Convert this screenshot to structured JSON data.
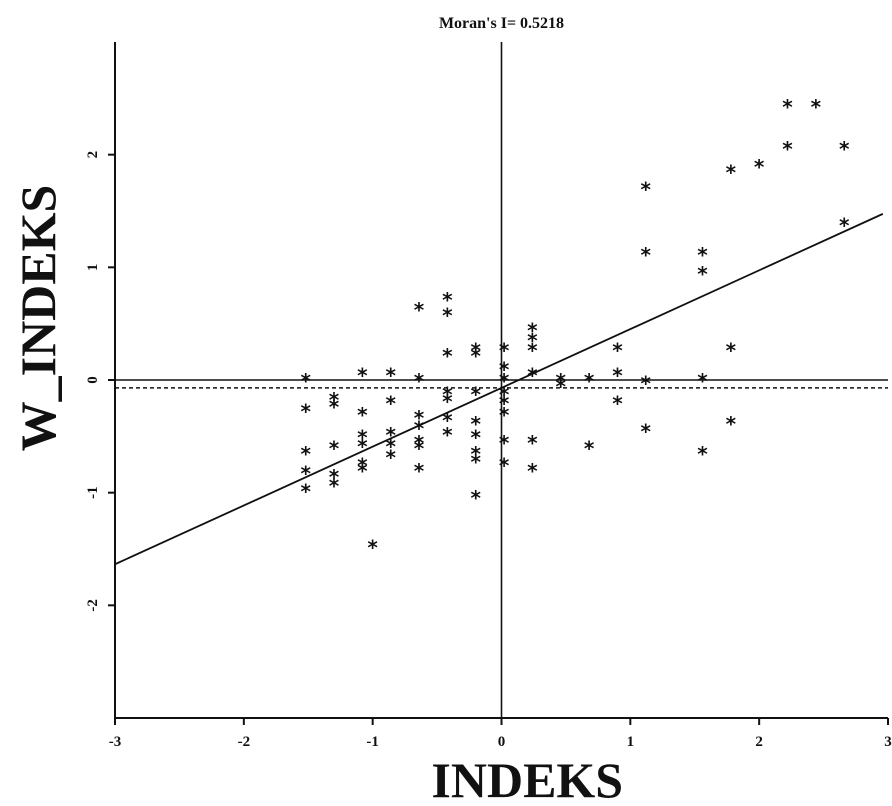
{
  "chart_data": {
    "type": "scatter",
    "title": "Moran's I= 0.5218",
    "xlabel": "INDEKS",
    "ylabel": "W_INDEKS",
    "xlim": [
      -3,
      3
    ],
    "ylim": [
      -3,
      3
    ],
    "x_ticks": [
      "-3",
      "-2",
      "-1",
      "0",
      "1",
      "2",
      "3"
    ],
    "y_ticks": [
      "-2",
      "-1",
      "0",
      "1",
      "2"
    ],
    "marker": "*",
    "grid": false,
    "reference_lines": {
      "x": 0,
      "y": 0,
      "dashed_y": -0.07
    },
    "regression_line": {
      "slope": 0.5218,
      "intercept": -0.07
    },
    "points": [
      [
        -1.52,
        0.0
      ],
      [
        -1.52,
        -0.27
      ],
      [
        -1.52,
        -0.65
      ],
      [
        -1.52,
        -0.82
      ],
      [
        -1.52,
        -0.98
      ],
      [
        -1.3,
        -0.17
      ],
      [
        -1.3,
        -0.23
      ],
      [
        -1.3,
        -0.6
      ],
      [
        -1.3,
        -0.85
      ],
      [
        -1.3,
        -0.93
      ],
      [
        -1.08,
        0.05
      ],
      [
        -1.08,
        -0.3
      ],
      [
        -1.08,
        -0.5
      ],
      [
        -1.08,
        -0.58
      ],
      [
        -1.08,
        -0.75
      ],
      [
        -1.08,
        -0.8
      ],
      [
        -0.86,
        0.05
      ],
      [
        -0.86,
        -0.2
      ],
      [
        -0.86,
        -0.48
      ],
      [
        -0.86,
        -0.58
      ],
      [
        -0.86,
        -0.68
      ],
      [
        -0.64,
        0.63
      ],
      [
        -0.64,
        0.0
      ],
      [
        -0.64,
        -0.33
      ],
      [
        -0.64,
        -0.42
      ],
      [
        -0.64,
        -0.55
      ],
      [
        -0.64,
        -0.6
      ],
      [
        -0.64,
        -0.8
      ],
      [
        -1.0,
        -1.48
      ],
      [
        -0.42,
        0.72
      ],
      [
        -0.42,
        0.58
      ],
      [
        -0.42,
        0.22
      ],
      [
        -0.42,
        -0.12
      ],
      [
        -0.42,
        -0.18
      ],
      [
        -0.42,
        -0.35
      ],
      [
        -0.42,
        -0.48
      ],
      [
        -0.2,
        0.27
      ],
      [
        -0.2,
        0.22
      ],
      [
        -0.2,
        -0.12
      ],
      [
        -0.2,
        -0.38
      ],
      [
        -0.2,
        -0.5
      ],
      [
        -0.2,
        -0.65
      ],
      [
        -0.2,
        -0.72
      ],
      [
        -0.2,
        -1.04
      ],
      [
        0.02,
        0.27
      ],
      [
        0.02,
        0.1
      ],
      [
        0.02,
        0.0
      ],
      [
        0.02,
        -0.12
      ],
      [
        0.02,
        -0.2
      ],
      [
        0.02,
        -0.3
      ],
      [
        0.02,
        -0.55
      ],
      [
        0.02,
        -0.75
      ],
      [
        0.24,
        0.45
      ],
      [
        0.24,
        0.36
      ],
      [
        0.24,
        0.27
      ],
      [
        0.24,
        0.05
      ],
      [
        0.24,
        -0.55
      ],
      [
        0.24,
        -0.8
      ],
      [
        0.46,
        0.0
      ],
      [
        0.46,
        -0.05
      ],
      [
        0.68,
        0.0
      ],
      [
        0.68,
        -0.6
      ],
      [
        0.9,
        0.27
      ],
      [
        0.9,
        0.05
      ],
      [
        0.9,
        -0.2
      ],
      [
        1.12,
        1.7
      ],
      [
        1.12,
        1.12
      ],
      [
        1.12,
        -0.02
      ],
      [
        1.12,
        -0.45
      ],
      [
        1.56,
        1.12
      ],
      [
        1.56,
        0.95
      ],
      [
        1.56,
        0.0
      ],
      [
        1.56,
        -0.65
      ],
      [
        1.78,
        1.85
      ],
      [
        1.78,
        0.27
      ],
      [
        1.78,
        -0.38
      ],
      [
        2.0,
        1.9
      ],
      [
        2.22,
        2.43
      ],
      [
        2.22,
        2.06
      ],
      [
        2.44,
        2.43
      ],
      [
        2.66,
        2.06
      ],
      [
        2.66,
        1.38
      ]
    ]
  }
}
